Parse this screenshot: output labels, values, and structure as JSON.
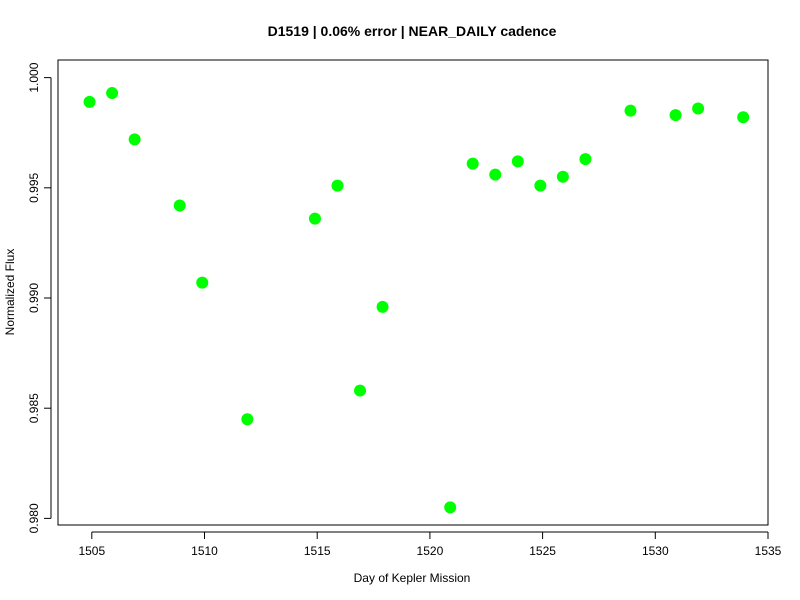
{
  "chart_data": {
    "type": "scatter",
    "title": "D1519 | 0.06% error | NEAR_DAILY cadence",
    "xlabel": "Day of Kepler Mission",
    "ylabel": "Normalized Flux",
    "xlim": [
      1503.5,
      1535.0
    ],
    "ylim": [
      0.9797,
      1.0008
    ],
    "xticks": [
      1505,
      1510,
      1515,
      1520,
      1525,
      1530,
      1535
    ],
    "xtick_labels": [
      "1505",
      "1510",
      "1515",
      "1520",
      "1525",
      "1530",
      "1535"
    ],
    "yticks": [
      0.98,
      0.985,
      0.99,
      0.995,
      1.0
    ],
    "ytick_labels": [
      "0.980",
      "0.985",
      "0.990",
      "0.995",
      "1.000"
    ],
    "grid": false,
    "marker_color": "#00ff00",
    "x": [
      1504.9,
      1505.9,
      1506.9,
      1508.9,
      1509.9,
      1511.9,
      1514.9,
      1515.9,
      1516.9,
      1517.9,
      1520.9,
      1521.9,
      1522.9,
      1523.9,
      1524.9,
      1525.9,
      1526.9,
      1528.9,
      1530.9,
      1531.9,
      1533.9
    ],
    "y": [
      0.9989,
      0.9993,
      0.9972,
      0.9942,
      0.9907,
      0.9845,
      0.9936,
      0.9951,
      0.9858,
      0.9896,
      0.9805,
      0.9961,
      0.9956,
      0.9962,
      0.9951,
      0.9955,
      0.9963,
      0.9985,
      0.9983,
      0.9986,
      0.9982
    ]
  }
}
